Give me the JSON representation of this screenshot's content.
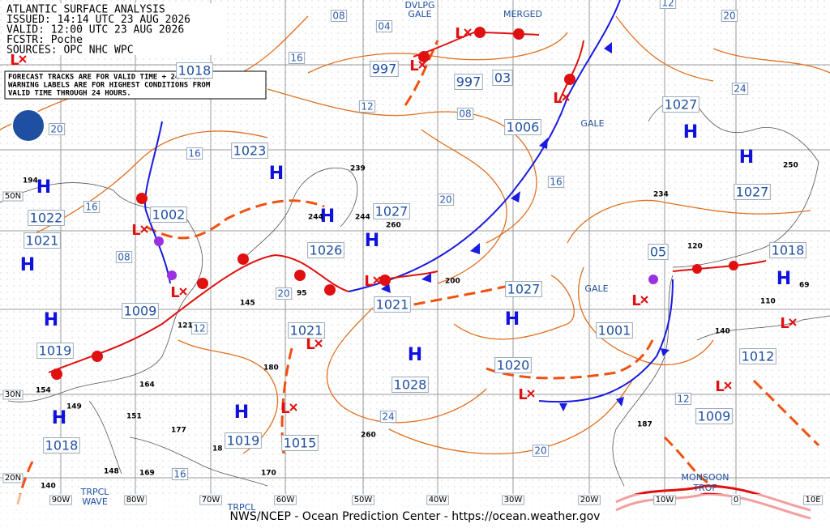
{
  "header": {
    "lines": [
      "ATLANTIC SURFACE ANALYSIS",
      "ISSUED: 14:14 UTC 23 AUG 2026",
      "VALID: 12:00 UTC 23 AUG 2026",
      "FCSTR: Poche",
      "SOURCES: OPC NHC WPC"
    ]
  },
  "note": [
    "FORECAST TRACKS ARE FOR VALID TIME + 24 HOURS.",
    "WARNING LABELS ARE FOR HIGHEST CONDITIONS FROM",
    "VALID TIME THROUGH 24 HOURS."
  ],
  "footer": "NWS/NCEP - Ocean Prediction Center - https://ocean.weather.gov",
  "symbols": {
    "high": "H",
    "low": "L"
  },
  "longitudes": [
    "90W",
    "80W",
    "70W",
    "60W",
    "50W",
    "40W",
    "30W",
    "20W",
    "10W",
    "0",
    "10E"
  ],
  "latitudes": [
    "50N",
    "30N",
    "20N"
  ],
  "pressures": [
    "1018",
    "997",
    "997",
    "03",
    "1006",
    "1023",
    "1027",
    "1027",
    "1002",
    "1022",
    "1021",
    "1027",
    "1026",
    "05",
    "1018",
    "1009",
    "1021",
    "1027",
    "1001",
    "1019",
    "1021",
    "1028",
    "1020",
    "1012",
    "1009",
    "1019",
    "1015",
    "1018"
  ],
  "isobars": [
    "08",
    "04",
    "16",
    "12",
    "08",
    "20",
    "16",
    "24",
    "20",
    "12",
    "20",
    "16",
    "16",
    "08",
    "12",
    "20",
    "24",
    "20",
    "12",
    "16"
  ],
  "warnings": [
    "DVLPG",
    "GALE",
    "MERGED",
    "GALE",
    "GALE",
    "MONSOON",
    "TROF",
    "TRPCL",
    "WAVE",
    "TRPCL"
  ],
  "stations": [
    "239",
    "244",
    "244",
    "260",
    "200",
    "95",
    "145",
    "121",
    "164",
    "154",
    "149",
    "151",
    "177",
    "18",
    "169",
    "148",
    "140",
    "170",
    "180",
    "260",
    "187",
    "120",
    "110",
    "140",
    "69",
    "234",
    "250",
    "194"
  ]
}
